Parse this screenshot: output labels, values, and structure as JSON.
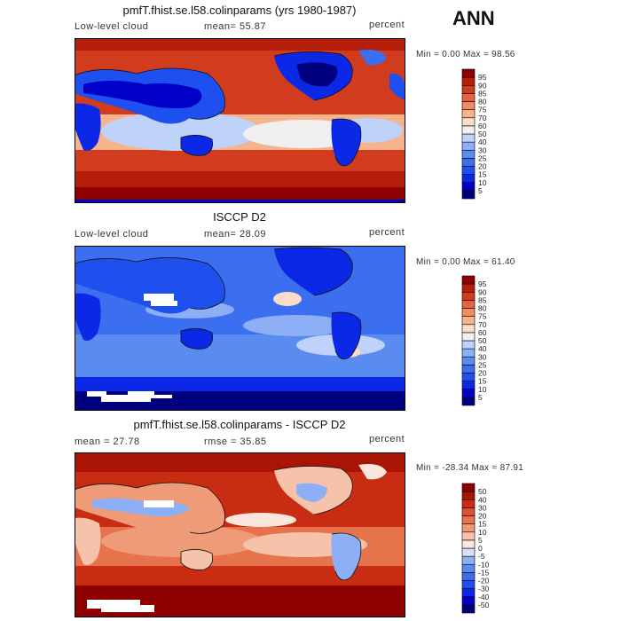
{
  "season_label": "ANN",
  "panels": [
    {
      "title": "pmfT.fhist.se.l58.colinparams (yrs 1980-1987)",
      "left_label": "Low-level cloud",
      "mean_label": "mean=  55.87",
      "units": "percent",
      "range_label": "Min =    0.00 Max =  98.56"
    },
    {
      "title": "ISCCP D2",
      "left_label": "Low-level cloud",
      "mean_label": "mean=  28.09",
      "units": "percent",
      "range_label": "Min =    0.00 Max =  61.40"
    },
    {
      "title": "pmfT.fhist.se.l58.colinparams - ISCCP D2",
      "left_label": "mean =  27.78",
      "mean_label": "rmse =  35.85",
      "units": "percent",
      "range_label": "Min = -28.34 Max =  87.91"
    }
  ],
  "chart_data": [
    {
      "type": "heatmap",
      "title": "pmfT.fhist.se.l58.colinparams (yrs 1980-1987)",
      "variable": "Low-level cloud",
      "units": "percent",
      "mean": 55.87,
      "min": 0.0,
      "max": 98.56,
      "colorbar_levels": [
        5,
        10,
        15,
        20,
        25,
        30,
        40,
        50,
        60,
        70,
        75,
        80,
        85,
        90,
        95
      ],
      "colorbar_colors": [
        "#00007f",
        "#0000c8",
        "#0a28e6",
        "#1e50f0",
        "#3c6ef0",
        "#5a8cf0",
        "#8caff5",
        "#bed2fa",
        "#f0f0f0",
        "#fadcc8",
        "#f5b48c",
        "#f08c64",
        "#e6643c",
        "#d23c1e",
        "#b41e0a",
        "#8c0000"
      ]
    },
    {
      "type": "heatmap",
      "title": "ISCCP D2",
      "variable": "Low-level cloud",
      "units": "percent",
      "mean": 28.09,
      "min": 0.0,
      "max": 61.4,
      "colorbar_levels": [
        5,
        10,
        15,
        20,
        25,
        30,
        40,
        50,
        60,
        70,
        75,
        80,
        85,
        90,
        95
      ],
      "colorbar_colors": [
        "#00007f",
        "#0000c8",
        "#0a28e6",
        "#1e50f0",
        "#3c6ef0",
        "#5a8cf0",
        "#8caff5",
        "#bed2fa",
        "#f0f0f0",
        "#fadcc8",
        "#f5b48c",
        "#f08c64",
        "#e6643c",
        "#d23c1e",
        "#b41e0a",
        "#8c0000"
      ]
    },
    {
      "type": "heatmap",
      "title": "pmfT.fhist.se.l58.colinparams - ISCCP D2",
      "units": "percent",
      "mean": 27.78,
      "rmse": 35.85,
      "min": -28.34,
      "max": 87.91,
      "colorbar_levels": [
        -50,
        -40,
        -30,
        -20,
        -15,
        -10,
        -5,
        0,
        5,
        10,
        15,
        20,
        30,
        40,
        50
      ],
      "colorbar_colors": [
        "#00007f",
        "#0000c8",
        "#0a28e6",
        "#1e50f0",
        "#3c6ef0",
        "#5a8cf0",
        "#8caff5",
        "#d2e1fa",
        "#fae6dc",
        "#f5c3aa",
        "#f09b78",
        "#e6734b",
        "#dc502d",
        "#c82d14",
        "#aa1405",
        "#8c0000"
      ]
    }
  ]
}
